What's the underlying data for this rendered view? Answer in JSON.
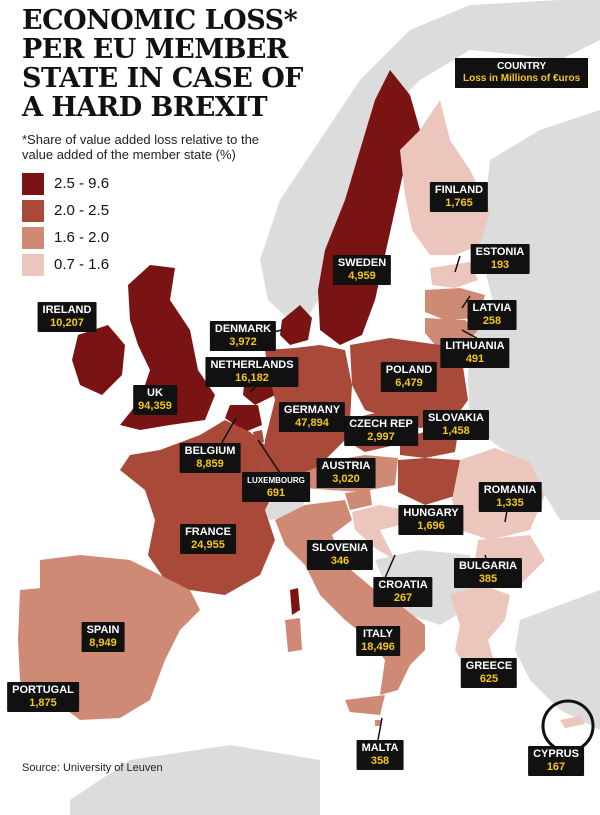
{
  "title": "ECONOMIC LOSS* PER EU MEMBER STATE IN CASE OF A HARD BREXIT",
  "subtitle": "*Share of value added loss relative to the value added of the member state (%)",
  "key": {
    "title": "COUNTRY",
    "subtitle": "Loss in Millions of €uros"
  },
  "legend": [
    {
      "label": "2.5 - 9.6",
      "color": "#7a1414"
    },
    {
      "label": "2.0 - 2.5",
      "color": "#a8493a"
    },
    {
      "label": "1.6 - 2.0",
      "color": "#cf8a76"
    },
    {
      "label": "0.7 - 1.6",
      "color": "#ecc6bd"
    }
  ],
  "colors": {
    "sea": "#ffffff",
    "non_eu": "#dcdcdc",
    "border": "#ffffff"
  },
  "countries": [
    {
      "name": "IRELAND",
      "value": "10,207",
      "band": 0
    },
    {
      "name": "UK",
      "value": "94,359",
      "band": 0
    },
    {
      "name": "DENMARK",
      "value": "3,972",
      "band": 0
    },
    {
      "name": "SWEDEN",
      "value": "4,959",
      "band": 0
    },
    {
      "name": "FINLAND",
      "value": "1,765",
      "band": 3
    },
    {
      "name": "ESTONIA",
      "value": "193",
      "band": 3
    },
    {
      "name": "LATVIA",
      "value": "258",
      "band": 2
    },
    {
      "name": "LITHUANIA",
      "value": "491",
      "band": 2
    },
    {
      "name": "NETHERLANDS",
      "value": "16,182",
      "band": 0
    },
    {
      "name": "BELGIUM",
      "value": "8,859",
      "band": 0
    },
    {
      "name": "LUXEMBOURG",
      "value": "691",
      "band": 1
    },
    {
      "name": "GERMANY",
      "value": "47,894",
      "band": 1
    },
    {
      "name": "POLAND",
      "value": "6,479",
      "band": 1
    },
    {
      "name": "CZECH REP",
      "value": "2,997",
      "band": 1
    },
    {
      "name": "SLOVAKIA",
      "value": "1,458",
      "band": 1
    },
    {
      "name": "AUSTRIA",
      "value": "3,020",
      "band": 2
    },
    {
      "name": "HUNGARY",
      "value": "1,696",
      "band": 1
    },
    {
      "name": "ROMANIA",
      "value": "1,335",
      "band": 3
    },
    {
      "name": "FRANCE",
      "value": "24,955",
      "band": 1
    },
    {
      "name": "SLOVENIA",
      "value": "346",
      "band": 2
    },
    {
      "name": "CROATIA",
      "value": "267",
      "band": 3
    },
    {
      "name": "BULGARIA",
      "value": "385",
      "band": 3
    },
    {
      "name": "SPAIN",
      "value": "8,949",
      "band": 2
    },
    {
      "name": "ITALY",
      "value": "18,496",
      "band": 2
    },
    {
      "name": "GREECE",
      "value": "625",
      "band": 3
    },
    {
      "name": "PORTUGAL",
      "value": "1,875",
      "band": 2
    },
    {
      "name": "MALTA",
      "value": "358",
      "band": 2
    },
    {
      "name": "CYPRUS",
      "value": "167",
      "band": 3
    }
  ],
  "source": "Source: University of Leuven"
}
